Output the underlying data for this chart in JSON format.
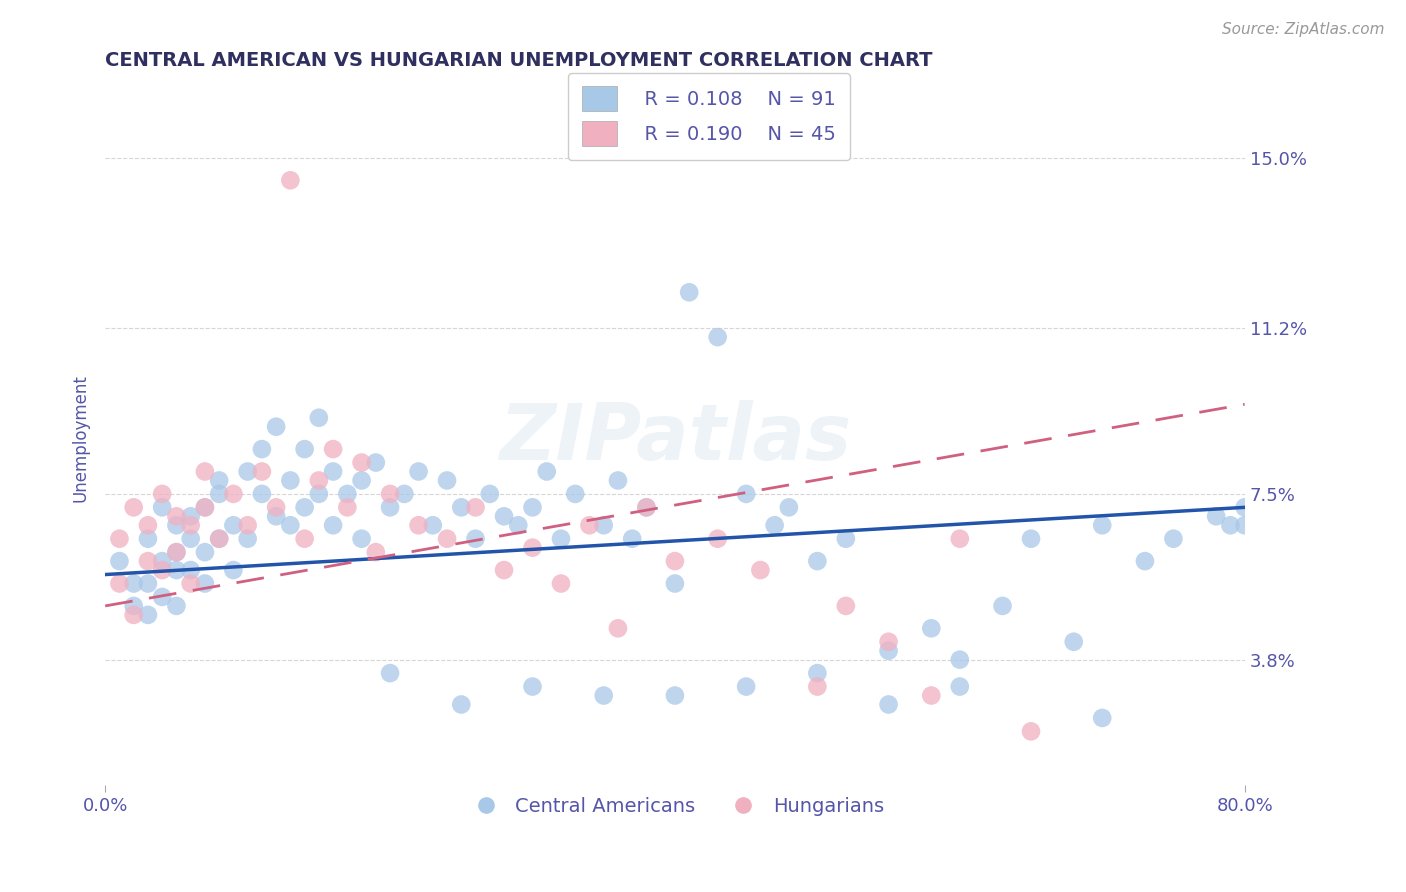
{
  "title": "CENTRAL AMERICAN VS HUNGARIAN UNEMPLOYMENT CORRELATION CHART",
  "source": "Source: ZipAtlas.com",
  "ylabel": "Unemployment",
  "xlim": [
    0.0,
    0.8
  ],
  "ylim": [
    0.01,
    0.165
  ],
  "yticks": [
    0.038,
    0.075,
    0.112,
    0.15
  ],
  "ytick_labels": [
    "3.8%",
    "7.5%",
    "11.2%",
    "15.0%"
  ],
  "xticks": [
    0.0,
    0.8
  ],
  "xtick_labels": [
    "0.0%",
    "80.0%"
  ],
  "blue_color": "#a8c8e8",
  "pink_color": "#f0b0c0",
  "blue_line_color": "#2255aa",
  "pink_line_color": "#d06080",
  "grid_color": "#cccccc",
  "watermark": "ZIPatlas",
  "legend_r1": "R = 0.108",
  "legend_n1": "N = 91",
  "legend_r2": "R = 0.190",
  "legend_n2": "N = 45",
  "legend_label1": "Central Americans",
  "legend_label2": "Hungarians",
  "title_color": "#303060",
  "axis_label_color": "#5555aa",
  "tick_label_color": "#5555aa",
  "blue_x": [
    0.01,
    0.02,
    0.02,
    0.03,
    0.03,
    0.03,
    0.04,
    0.04,
    0.04,
    0.05,
    0.05,
    0.05,
    0.05,
    0.06,
    0.06,
    0.06,
    0.07,
    0.07,
    0.07,
    0.08,
    0.08,
    0.08,
    0.09,
    0.09,
    0.1,
    0.1,
    0.11,
    0.11,
    0.12,
    0.12,
    0.13,
    0.13,
    0.14,
    0.14,
    0.15,
    0.15,
    0.16,
    0.16,
    0.17,
    0.18,
    0.18,
    0.19,
    0.2,
    0.21,
    0.22,
    0.23,
    0.24,
    0.25,
    0.26,
    0.27,
    0.28,
    0.29,
    0.3,
    0.31,
    0.32,
    0.33,
    0.35,
    0.36,
    0.37,
    0.38,
    0.4,
    0.41,
    0.43,
    0.45,
    0.47,
    0.48,
    0.5,
    0.52,
    0.55,
    0.58,
    0.6,
    0.63,
    0.65,
    0.68,
    0.7,
    0.73,
    0.75,
    0.78,
    0.79,
    0.8,
    0.6,
    0.5,
    0.4,
    0.3,
    0.2,
    0.25,
    0.35,
    0.45,
    0.55,
    0.7,
    0.8
  ],
  "blue_y": [
    0.06,
    0.055,
    0.05,
    0.065,
    0.055,
    0.048,
    0.06,
    0.052,
    0.072,
    0.058,
    0.068,
    0.05,
    0.062,
    0.07,
    0.058,
    0.065,
    0.072,
    0.062,
    0.055,
    0.075,
    0.065,
    0.078,
    0.068,
    0.058,
    0.08,
    0.065,
    0.075,
    0.085,
    0.07,
    0.09,
    0.078,
    0.068,
    0.085,
    0.072,
    0.092,
    0.075,
    0.08,
    0.068,
    0.075,
    0.078,
    0.065,
    0.082,
    0.072,
    0.075,
    0.08,
    0.068,
    0.078,
    0.072,
    0.065,
    0.075,
    0.07,
    0.068,
    0.072,
    0.08,
    0.065,
    0.075,
    0.068,
    0.078,
    0.065,
    0.072,
    0.055,
    0.12,
    0.11,
    0.075,
    0.068,
    0.072,
    0.06,
    0.065,
    0.04,
    0.045,
    0.038,
    0.05,
    0.065,
    0.042,
    0.068,
    0.06,
    0.065,
    0.07,
    0.068,
    0.072,
    0.032,
    0.035,
    0.03,
    0.032,
    0.035,
    0.028,
    0.03,
    0.032,
    0.028,
    0.025,
    0.068
  ],
  "pink_x": [
    0.01,
    0.01,
    0.02,
    0.02,
    0.03,
    0.03,
    0.04,
    0.04,
    0.05,
    0.05,
    0.06,
    0.06,
    0.07,
    0.07,
    0.08,
    0.09,
    0.1,
    0.11,
    0.12,
    0.13,
    0.14,
    0.15,
    0.16,
    0.17,
    0.18,
    0.19,
    0.2,
    0.22,
    0.24,
    0.26,
    0.28,
    0.3,
    0.32,
    0.34,
    0.36,
    0.38,
    0.4,
    0.43,
    0.46,
    0.5,
    0.52,
    0.55,
    0.58,
    0.6,
    0.65
  ],
  "pink_y": [
    0.065,
    0.055,
    0.072,
    0.048,
    0.06,
    0.068,
    0.058,
    0.075,
    0.062,
    0.07,
    0.068,
    0.055,
    0.072,
    0.08,
    0.065,
    0.075,
    0.068,
    0.08,
    0.072,
    0.145,
    0.065,
    0.078,
    0.085,
    0.072,
    0.082,
    0.062,
    0.075,
    0.068,
    0.065,
    0.072,
    0.058,
    0.063,
    0.055,
    0.068,
    0.045,
    0.072,
    0.06,
    0.065,
    0.058,
    0.032,
    0.05,
    0.042,
    0.03,
    0.065,
    0.022
  ]
}
